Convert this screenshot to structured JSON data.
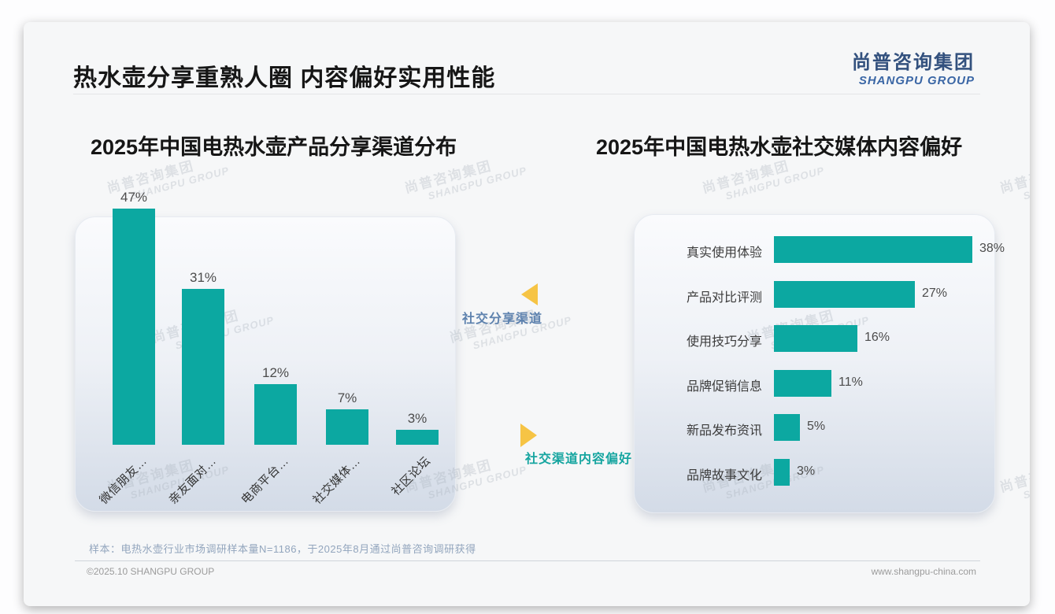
{
  "header": {
    "title": "热水壶分享重熟人圈 内容偏好实用性能",
    "logo_cn": "尚普咨询集团",
    "logo_en": "SHANGPU GROUP"
  },
  "watermark": {
    "line1": "尚普咨询集团",
    "line2": "SHANGPU GROUP"
  },
  "annotations": {
    "left_chart_label": "社交分享渠道",
    "right_chart_label": "社交渠道内容偏好"
  },
  "footer": {
    "sample_note": "样本：电热水壶行业市场调研样本量N=1186，于2025年8月通过尚普咨询调研获得",
    "copyright": "©2025.10 SHANGPU GROUP",
    "website": "www.shangpu-china.com"
  },
  "colors": {
    "bar_teal": "#0ca8a1",
    "arrow_yellow": "#f6c445",
    "label_blue": "#5e82ae",
    "label_teal": "#16a5a0",
    "logo_blue": "#33517e"
  },
  "chart_data": [
    {
      "type": "bar",
      "orientation": "vertical",
      "title": "2025年中国电热水壶产品分享渠道分布",
      "categories": [
        "微信朋友…",
        "亲友面对…",
        "电商平台…",
        "社交媒体…",
        "社区论坛"
      ],
      "values": [
        47,
        31,
        12,
        7,
        3
      ],
      "unit": "%",
      "ylim": [
        0,
        50
      ],
      "grid": false,
      "legend": false
    },
    {
      "type": "bar",
      "orientation": "horizontal",
      "title": "2025年中国电热水壶社交媒体内容偏好",
      "categories": [
        "真实使用体验",
        "产品对比评测",
        "使用技巧分享",
        "品牌促销信息",
        "新品发布资讯",
        "品牌故事文化"
      ],
      "values": [
        38,
        27,
        16,
        11,
        5,
        3
      ],
      "unit": "%",
      "xlim": [
        0,
        40
      ],
      "grid": false,
      "legend": false
    }
  ]
}
